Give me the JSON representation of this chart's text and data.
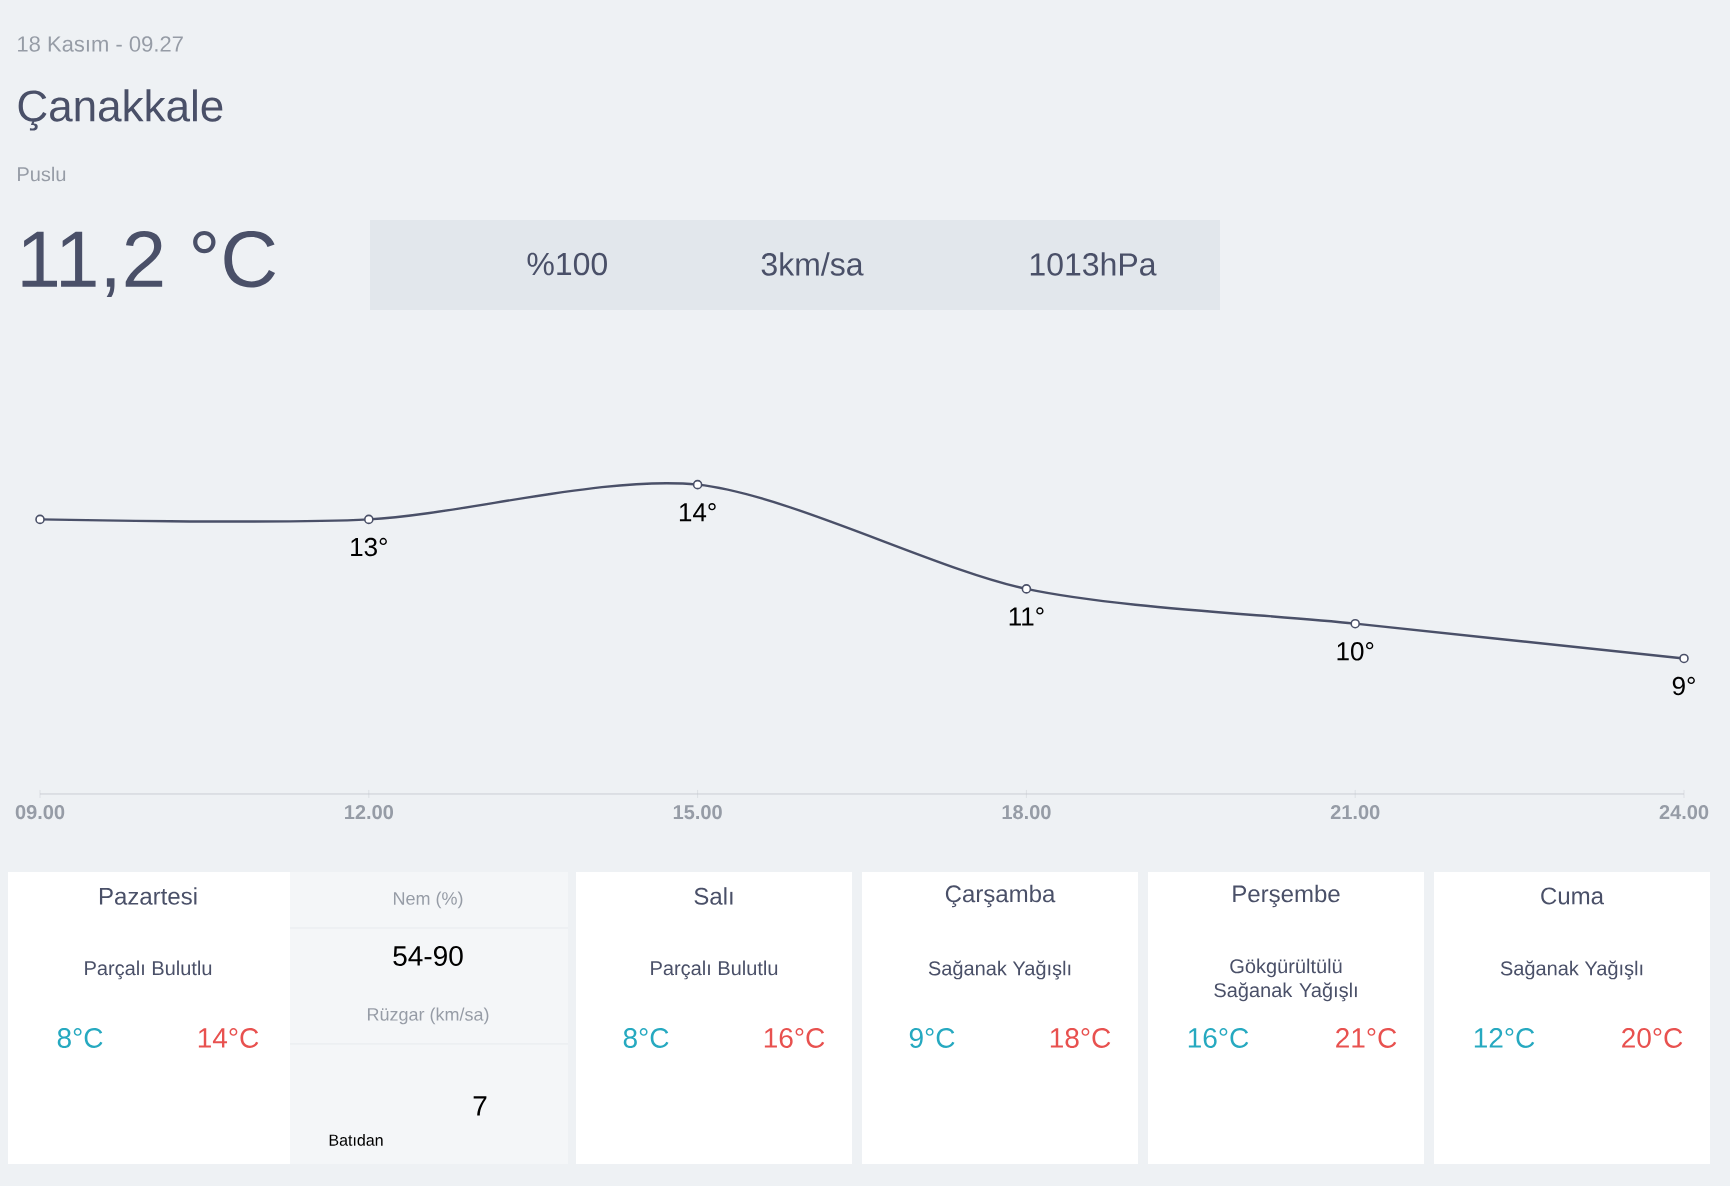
{
  "chart_data": {
    "type": "line",
    "title": "Çanakkale",
    "subtitle": "Puslu",
    "categories": [
      "09.00",
      "12.00",
      "15.00",
      "18.00",
      "21.00",
      "24.00"
    ],
    "values": [
      13,
      13,
      14,
      11,
      10,
      9
    ],
    "value_labels": [
      null,
      "13°",
      "14°",
      "11°",
      "10°",
      "9°"
    ],
    "color": "#4a5068",
    "marker": "circle",
    "line_style": "solid",
    "annotations": [
      "18 Kasım - 09.27",
      "11,2 °C",
      "%100",
      "3km/sa",
      "1013hPa",
      "Pazartesi",
      "Parçalı Bulutlu",
      "8°C",
      "14°C",
      "Nem (%)",
      "54-90",
      "Rüzgar (km/sa)",
      "7",
      "Batıdan",
      "Salı",
      "Parçalı Bulutlu",
      "8°C",
      "16°C",
      "Çarşamba",
      "Sağanak Yağışlı",
      "9°C",
      "18°C",
      "Perşembe",
      "Gökgürültülü Sağanak Yağışlı",
      "16°C",
      "21°C",
      "Cuma",
      "Sağanak Yağışlı",
      "12°C",
      "20°C"
    ]
  }
}
